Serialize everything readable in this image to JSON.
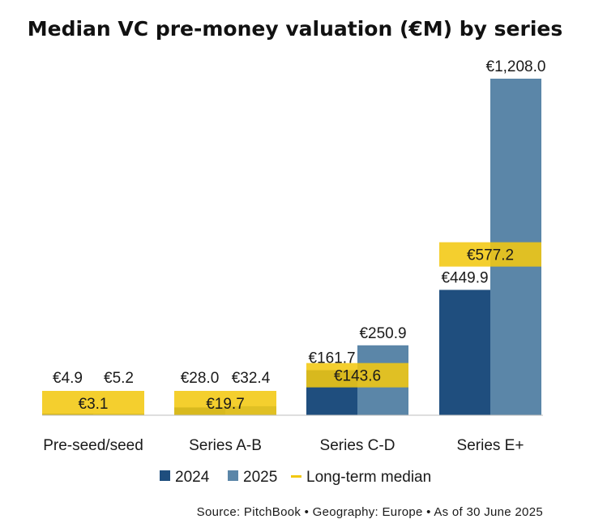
{
  "chart_data": {
    "type": "bar",
    "title": "Median VC pre-money valuation (€M) by series",
    "categories": [
      "Pre-seed/seed",
      "Series A-B",
      "Series C-D",
      "Series E+"
    ],
    "series": [
      {
        "name": "2024",
        "values": [
          4.9,
          28.0,
          161.7,
          449.9
        ],
        "labels": [
          "€4.9",
          "€28.0",
          "€161.7",
          "€449.9"
        ]
      },
      {
        "name": "2025",
        "values": [
          5.2,
          32.4,
          250.9,
          1208.0
        ],
        "labels": [
          "€5.2",
          "€32.4",
          "€250.9",
          "€1,208.0"
        ]
      }
    ],
    "long_term_median": {
      "name": "Long-term median",
      "values": [
        3.1,
        19.7,
        143.6,
        577.2
      ],
      "labels": [
        "€3.1",
        "€19.7",
        "€143.6",
        "€577.2"
      ]
    },
    "ylim": [
      0,
      1208
    ],
    "xlabel": "",
    "ylabel": "",
    "grid": false,
    "legend": "bottom",
    "colors": {
      "2024": "#1f4e7e",
      "2025": "#5b86a8",
      "median": "#f2c811"
    },
    "source": "Source: PitchBook • Geography: Europe • As of 30 June 2025"
  }
}
